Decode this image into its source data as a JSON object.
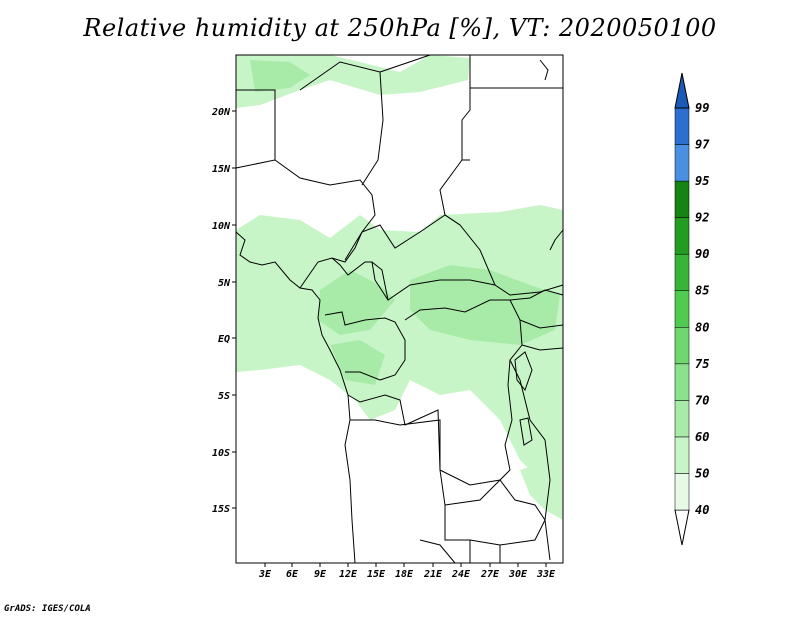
{
  "title": "Relative humidity at 250hPa [%], VT: 2020050100",
  "credit": "GrADS: IGES/COLA",
  "axes": {
    "lon_labels": [
      "3E",
      "6E",
      "9E",
      "12E",
      "15E",
      "18E",
      "21E",
      "24E",
      "27E",
      "30E",
      "33E"
    ],
    "lat_labels": [
      "20N",
      "15N",
      "10N",
      "5N",
      "EQ",
      "5S",
      "10S",
      "15S"
    ]
  },
  "colorbar": {
    "levels": [
      "40",
      "50",
      "60",
      "70",
      "75",
      "80",
      "85",
      "90",
      "92",
      "95",
      "97",
      "99"
    ],
    "colors": [
      "#ffffff",
      "#e6fae6",
      "#c8f5c8",
      "#a8eba8",
      "#8ce28c",
      "#6ed76e",
      "#4fcb4f",
      "#37b537",
      "#229d22",
      "#148414",
      "#4a90e2",
      "#2d6fd0",
      "#1a5ab8"
    ]
  },
  "map": {
    "region": "Central Africa",
    "lon_range": [
      0,
      35
    ],
    "lat_range": [
      -20,
      25
    ],
    "shading_color": "#c8f5c8",
    "shading_dark_color": "#a8eba8"
  }
}
